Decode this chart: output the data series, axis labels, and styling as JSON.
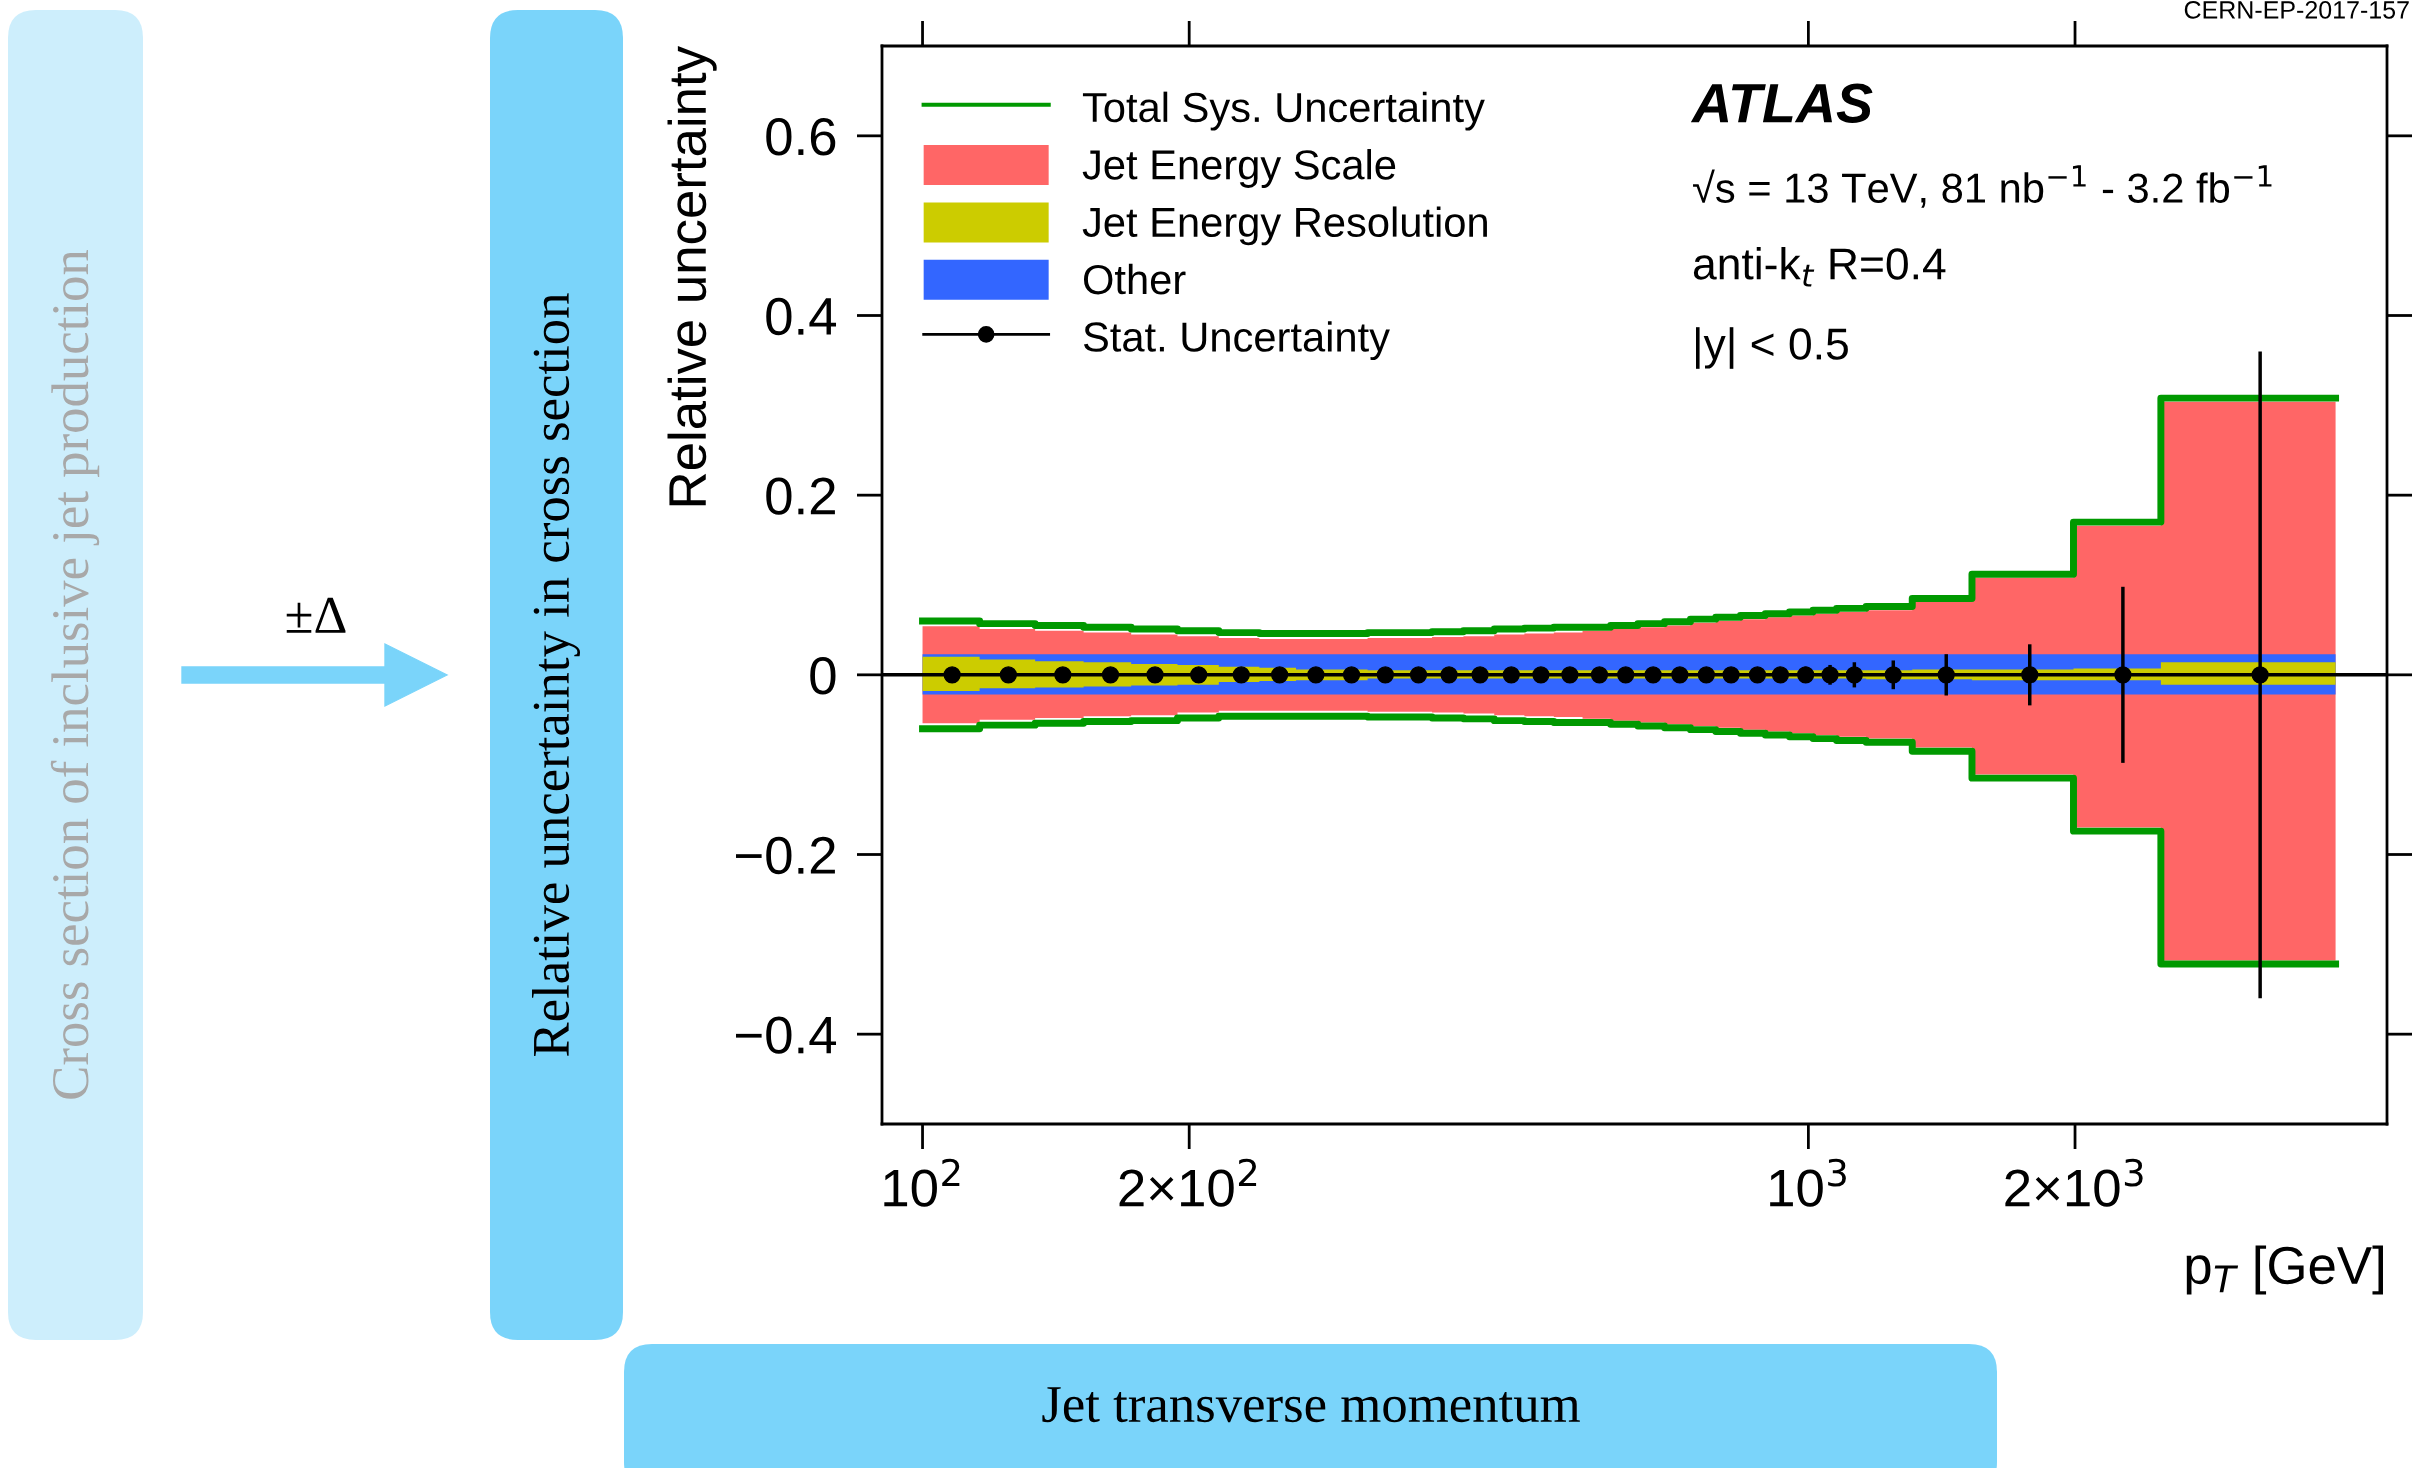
{
  "chart_data": {
    "type": "area",
    "xlabel": "p$_{T}$ [GeV]",
    "ylabel": "Relative uncertainty",
    "log": "x",
    "xlim": [
      90,
      4500
    ],
    "ylim": [
      -0.5,
      0.7
    ],
    "xticks": [
      {
        "value": 100,
        "label": "10$^{2}$"
      },
      {
        "value": 200,
        "label": "2×10$^{2}$"
      },
      {
        "value": 1000,
        "label": "10$^{3}$"
      },
      {
        "value": 2000,
        "label": "2×10$^{3}$"
      }
    ],
    "yticks": [
      {
        "value": -0.4,
        "label": "−0.4"
      },
      {
        "value": -0.2,
        "label": "−0.2"
      },
      0,
      0.2,
      0.4,
      0.6
    ],
    "legend": "top left",
    "ref_lines": [
      {
        "axis": "y",
        "value": 0,
        "color": "#000000"
      }
    ],
    "series": [
      {
        "name": "Total Sys. Uncertainty",
        "type": "step",
        "color": "#009900",
        "x": [
          100,
          116,
          134,
          152,
          172,
          194,
          216,
          240,
          264,
          290,
          318,
          346,
          376,
          408,
          442,
          478,
          516,
          556,
          598,
          642,
          688,
          736,
          786,
          838,
          894,
          952,
          1012,
          1076,
          1162,
          1310,
          1530,
          1992,
          2500,
          3937
        ],
        "values": [
          0.06,
          0.057,
          0.055,
          0.053,
          0.051,
          0.049,
          0.047,
          0.046,
          0.046,
          0.046,
          0.047,
          0.047,
          0.048,
          0.049,
          0.051,
          0.052,
          0.053,
          0.053,
          0.055,
          0.057,
          0.059,
          0.062,
          0.064,
          0.066,
          0.068,
          0.07,
          0.072,
          0.074,
          0.076,
          0.085,
          0.112,
          0.17,
          0.308,
          0.308
        ]
      },
      {
        "type": "step",
        "color": "#009900",
        "x": [
          100,
          116,
          134,
          152,
          172,
          194,
          216,
          240,
          264,
          290,
          318,
          346,
          376,
          408,
          442,
          478,
          516,
          556,
          598,
          642,
          688,
          736,
          786,
          838,
          894,
          952,
          1012,
          1076,
          1162,
          1310,
          1530,
          1992,
          2500,
          3937
        ],
        "values": [
          -0.06,
          -0.056,
          -0.054,
          -0.052,
          -0.051,
          -0.048,
          -0.046,
          -0.046,
          -0.046,
          -0.046,
          -0.047,
          -0.047,
          -0.048,
          -0.049,
          -0.051,
          -0.052,
          -0.053,
          -0.053,
          -0.055,
          -0.057,
          -0.059,
          -0.061,
          -0.063,
          -0.065,
          -0.067,
          -0.069,
          -0.071,
          -0.073,
          -0.075,
          -0.085,
          -0.115,
          -0.174,
          -0.322,
          -0.322
        ]
      },
      {
        "name": "Jet Energy Scale",
        "color": "#ff6666",
        "x": [
          100,
          116,
          134,
          152,
          172,
          194,
          216,
          240,
          264,
          290,
          318,
          346,
          376,
          408,
          442,
          478,
          516,
          556,
          598,
          642,
          688,
          736,
          786,
          838,
          894,
          952,
          1012,
          1076,
          1162,
          1310,
          1530,
          1992,
          2500,
          3937
        ],
        "values": [
          null,
          null,
          null,
          null,
          null,
          null,
          null,
          null,
          null,
          null,
          null,
          null,
          null,
          null,
          null,
          null,
          null,
          null,
          null,
          null,
          null,
          null,
          null,
          null,
          null,
          null,
          null,
          null,
          null,
          null,
          null,
          null,
          null,
          null
        ],
        "upper": [
          0.054,
          0.051,
          0.049,
          0.047,
          0.045,
          0.043,
          0.041,
          0.04,
          0.04,
          0.04,
          0.041,
          0.041,
          0.042,
          0.043,
          0.045,
          0.046,
          0.047,
          0.049,
          0.051,
          0.053,
          0.055,
          0.058,
          0.06,
          0.062,
          0.064,
          0.066,
          0.068,
          0.07,
          0.072,
          0.081,
          0.108,
          0.166,
          0.304,
          0.304
        ],
        "lower": [
          -0.054,
          -0.05,
          -0.048,
          -0.046,
          -0.045,
          -0.042,
          -0.04,
          -0.04,
          -0.04,
          -0.04,
          -0.041,
          -0.041,
          -0.042,
          -0.043,
          -0.045,
          -0.046,
          -0.047,
          -0.049,
          -0.051,
          -0.053,
          -0.055,
          -0.057,
          -0.059,
          -0.061,
          -0.063,
          -0.065,
          -0.067,
          -0.069,
          -0.071,
          -0.081,
          -0.111,
          -0.17,
          -0.318,
          -0.318
        ]
      },
      {
        "name": "Jet Energy Resolution",
        "color": "#cccc00",
        "x": [
          100,
          116,
          134,
          152,
          172,
          194,
          216,
          240,
          264,
          290,
          318,
          346,
          376,
          408,
          442,
          478,
          516,
          556,
          598,
          642,
          688,
          736,
          786,
          838,
          894,
          952,
          1012,
          1076,
          1162,
          1310,
          1530,
          1992,
          2500,
          3937
        ],
        "values": [
          null,
          null,
          null,
          null,
          null,
          null,
          null,
          null,
          null,
          null,
          null,
          null,
          null,
          null,
          null,
          null,
          null,
          null,
          null,
          null,
          null,
          null,
          null,
          null,
          null,
          null,
          null,
          null,
          null,
          null,
          null,
          null,
          null,
          null
        ],
        "upper": [
          0.02,
          0.017,
          0.015,
          0.014,
          0.012,
          0.011,
          0.009,
          0.008,
          0.006,
          0.006,
          0.005,
          0.005,
          0.005,
          0.005,
          0.005,
          0.005,
          0.005,
          0.005,
          0.005,
          0.005,
          0.005,
          0.005,
          0.005,
          0.005,
          0.005,
          0.005,
          0.005,
          0.005,
          0.005,
          0.006,
          0.006,
          0.007,
          0.014,
          0.014
        ],
        "lower": [
          -0.018,
          -0.015,
          -0.014,
          -0.013,
          -0.012,
          -0.011,
          -0.008,
          -0.007,
          -0.006,
          -0.006,
          -0.004,
          -0.004,
          -0.004,
          -0.004,
          -0.004,
          -0.004,
          -0.004,
          -0.004,
          -0.004,
          -0.004,
          -0.004,
          -0.004,
          -0.004,
          -0.004,
          -0.004,
          -0.004,
          -0.004,
          -0.004,
          -0.005,
          -0.005,
          -0.006,
          -0.006,
          -0.011,
          -0.011
        ]
      },
      {
        "name": "Other",
        "color": "#3366ff",
        "x": [
          100,
          116,
          134,
          152,
          172,
          194,
          216,
          240,
          264,
          290,
          318,
          346,
          376,
          408,
          442,
          478,
          516,
          556,
          598,
          642,
          688,
          736,
          786,
          838,
          894,
          952,
          1012,
          1076,
          1162,
          1310,
          1530,
          1992,
          2500,
          3937
        ],
        "values": [
          null,
          null,
          null,
          null,
          null,
          null,
          null,
          null,
          null,
          null,
          null,
          null,
          null,
          null,
          null,
          null,
          null,
          null,
          null,
          null,
          null,
          null,
          null,
          null,
          null,
          null,
          null,
          null,
          null,
          null,
          null,
          null,
          null,
          null
        ],
        "upper": [
          0.023,
          0.023,
          0.023,
          0.023,
          0.023,
          0.023,
          0.023,
          0.023,
          0.023,
          0.023,
          0.023,
          0.023,
          0.023,
          0.023,
          0.023,
          0.023,
          0.023,
          0.023,
          0.023,
          0.023,
          0.023,
          0.023,
          0.023,
          0.023,
          0.023,
          0.023,
          0.023,
          0.023,
          0.023,
          0.023,
          0.023,
          0.023,
          0.023,
          0.023
        ],
        "lower": [
          -0.022,
          -0.022,
          -0.022,
          -0.022,
          -0.022,
          -0.022,
          -0.022,
          -0.022,
          -0.022,
          -0.022,
          -0.022,
          -0.022,
          -0.022,
          -0.022,
          -0.022,
          -0.022,
          -0.022,
          -0.022,
          -0.022,
          -0.022,
          -0.022,
          -0.022,
          -0.022,
          -0.022,
          -0.022,
          -0.022,
          -0.022,
          -0.022,
          -0.022,
          -0.022,
          -0.022,
          -0.022,
          -0.022,
          -0.022
        ]
      },
      {
        "name": "Stat. Uncertainty",
        "type": "scatter",
        "color": "#000000",
        "marker": "circle",
        "x": [
          108,
          125,
          144,
          163,
          183,
          205,
          229,
          253,
          278,
          305,
          333,
          363,
          393,
          426,
          462,
          499,
          538,
          581,
          622,
          668,
          716,
          767,
          818,
          876,
          930,
          993,
          1058,
          1127,
          1247,
          1431,
          1778,
          2265,
          3236
        ],
        "values": [
          0,
          0,
          0,
          0,
          0,
          0,
          0,
          0,
          0,
          0,
          0,
          0,
          0,
          0,
          0,
          0,
          0,
          0,
          0,
          0,
          0,
          0,
          0,
          0,
          0,
          0,
          0,
          0,
          0,
          0,
          0,
          0,
          0
        ],
        "errors": [
          null,
          null,
          null,
          null,
          null,
          null,
          null,
          null,
          null,
          null,
          null,
          null,
          null,
          null,
          null,
          null,
          null,
          null,
          null,
          null,
          null,
          null,
          null,
          null,
          null,
          0.009,
          0.011,
          0.014,
          0.016,
          0.023,
          0.034,
          0.098,
          0.36
        ]
      }
    ],
    "annotations": [
      "ATLAS",
      "√s = 13 TeV, 81 nb$^{−1}$ - 3.2 fb$^{−1}$",
      "anti-k$_{t}$ R=0.4",
      "|y| < 0.5",
      "CERN-EP-2017-157",
      "Cross section of inclusive jet production",
      "±Δ",
      "Relative uncertainty in cross section",
      "Jet transverse momentum"
    ]
  }
}
